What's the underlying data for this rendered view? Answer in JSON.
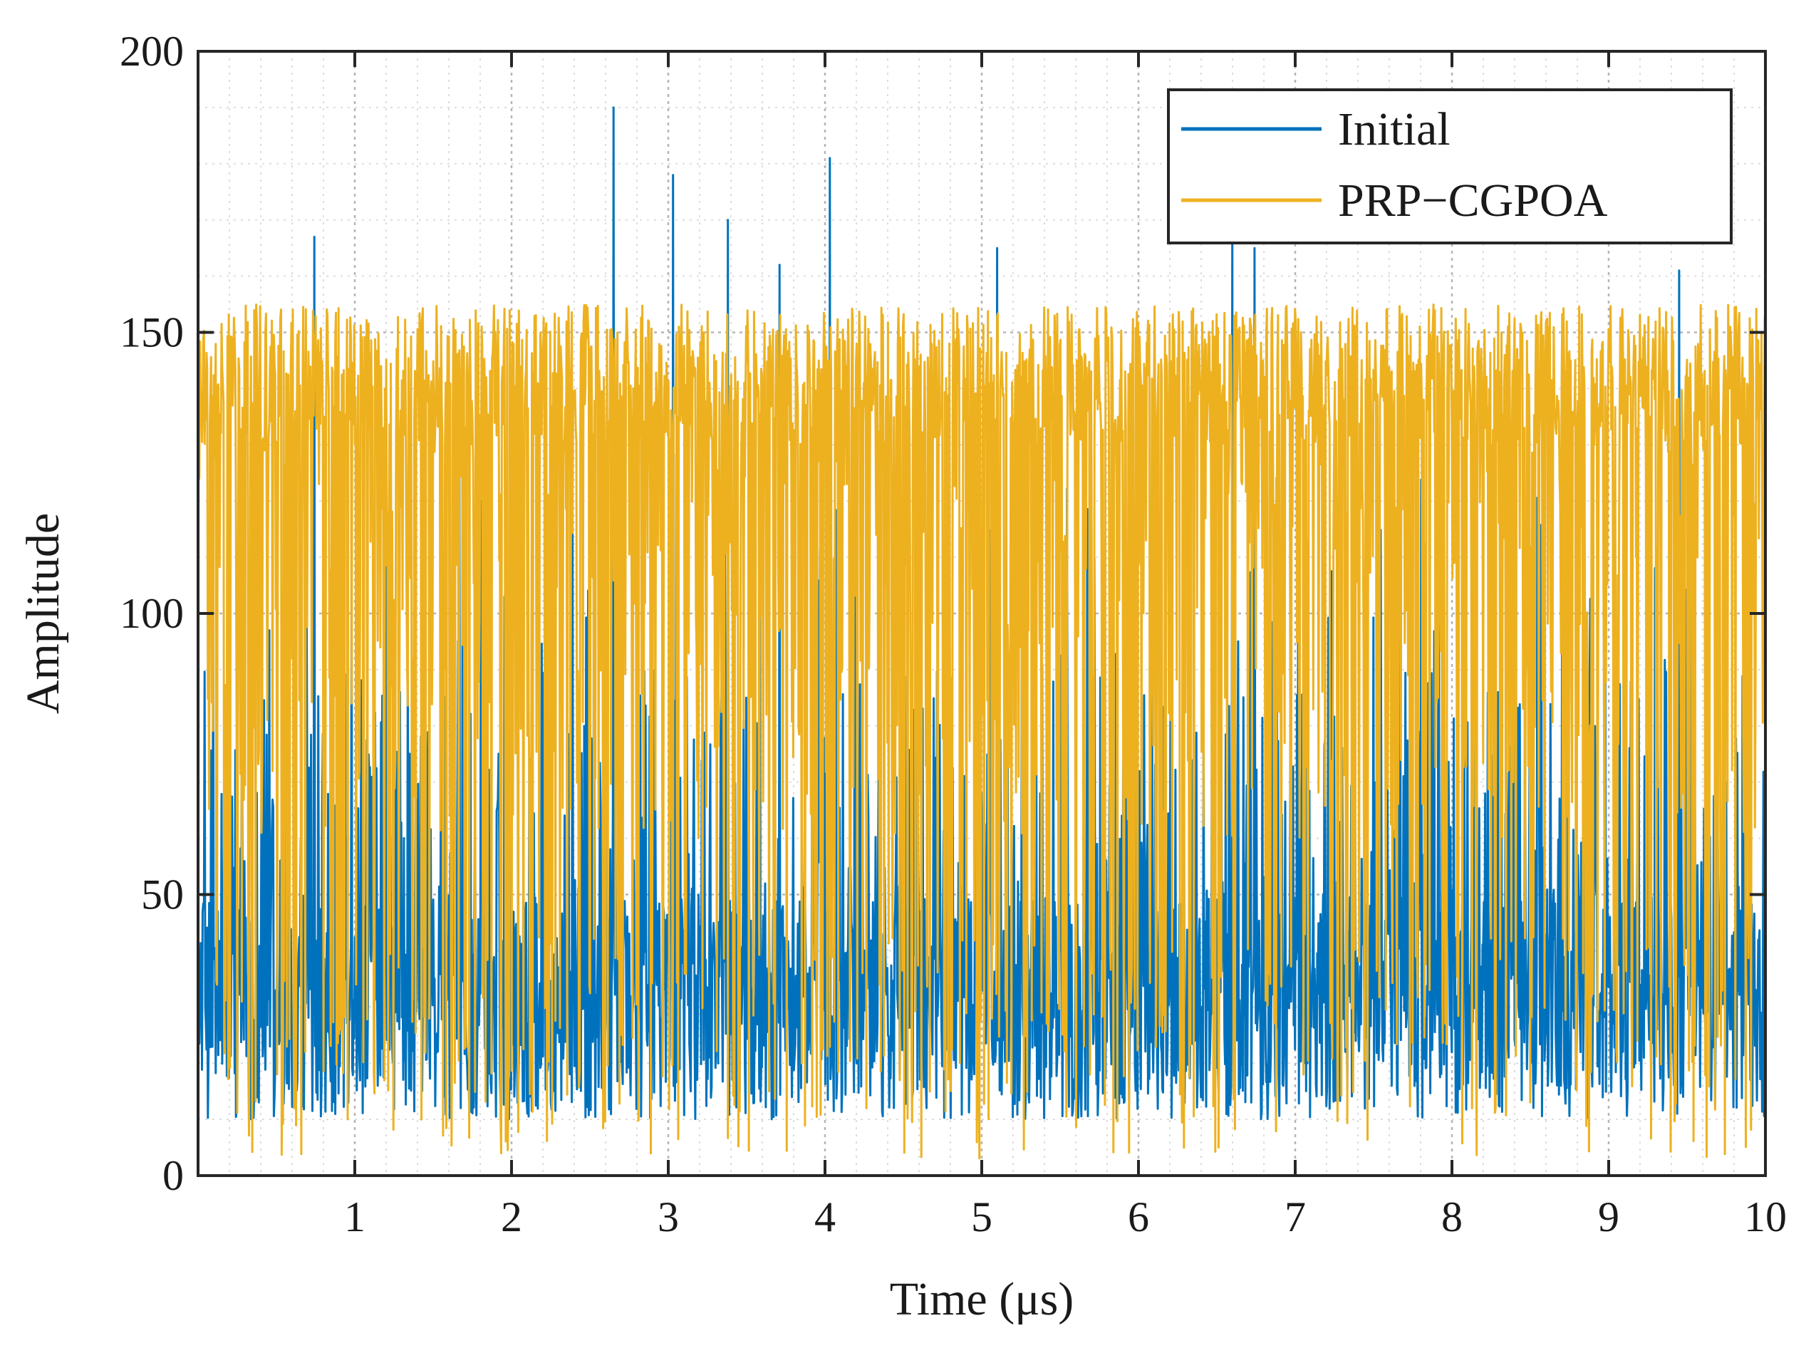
{
  "chart_data": {
    "type": "line",
    "title": "",
    "xlabel": "Time (μs)",
    "ylabel": "Amplitude",
    "xlim": [
      0,
      10
    ],
    "ylim": [
      0,
      200
    ],
    "x_ticks": [
      1,
      2,
      3,
      4,
      5,
      6,
      7,
      8,
      9,
      10
    ],
    "y_ticks": [
      0,
      50,
      100,
      150,
      200
    ],
    "x_tick_labels": [
      "1",
      "2",
      "3",
      "4",
      "5",
      "6",
      "7",
      "8",
      "9",
      "10"
    ],
    "y_tick_labels": [
      "0",
      "50",
      "100",
      "150",
      "200"
    ],
    "grid": true,
    "minor_grid": true,
    "legend_position": "top-right",
    "series": [
      {
        "name": "Initial",
        "color": "#0072BD",
        "sample_count": 2400,
        "range": [
          1,
          190
        ],
        "typical_range": [
          10,
          130
        ],
        "spikes": [
          {
            "x": 0.74,
            "y": 167
          },
          {
            "x": 2.65,
            "y": 190
          },
          {
            "x": 3.03,
            "y": 178
          },
          {
            "x": 3.38,
            "y": 170
          },
          {
            "x": 3.71,
            "y": 162
          },
          {
            "x": 4.03,
            "y": 181
          },
          {
            "x": 5.1,
            "y": 165
          },
          {
            "x": 6.6,
            "y": 168
          },
          {
            "x": 6.74,
            "y": 165
          },
          {
            "x": 9.45,
            "y": 161
          }
        ]
      },
      {
        "name": "PRP−CGPOA",
        "color": "#EDB120",
        "sample_count": 2400,
        "range": [
          3,
          158
        ],
        "typical_range": [
          20,
          155
        ],
        "envelope_max": 155
      }
    ]
  }
}
